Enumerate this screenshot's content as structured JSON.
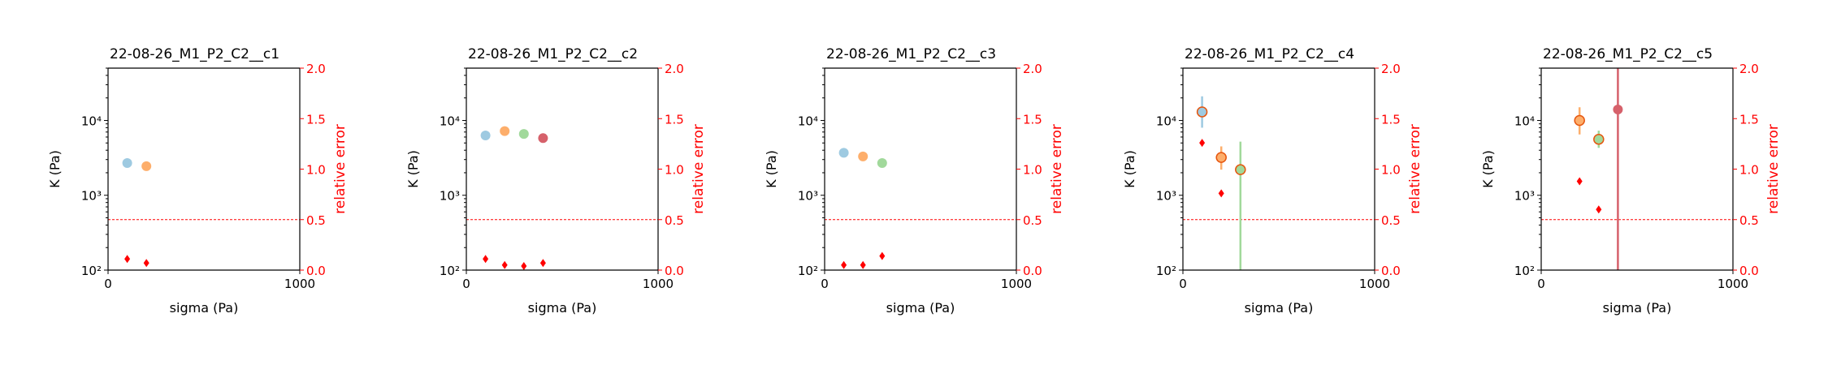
{
  "colors": {
    "axis": "#000000",
    "error_axis": "#ff0000",
    "threshold_line": "#ff0000",
    "error_marker": "#ff0000",
    "series_palette": [
      "#9ecae1",
      "#fdae6b",
      "#a1d99b",
      "#d6616b"
    ],
    "overlay_marker": "#e6550d"
  },
  "chart_data": [
    {
      "type": "scatter",
      "title": "22-08-26_M1_P2_C2__c1",
      "xlabel": "sigma (Pa)",
      "ylabel": "K (Pa)",
      "y2label": "relative error",
      "xlim": [
        0,
        1000
      ],
      "ylim": [
        100,
        50000
      ],
      "yscale": "log",
      "y2lim": [
        0,
        2.0
      ],
      "xticks": [
        "0",
        "1000"
      ],
      "yticks": [
        "10²",
        "10³",
        "10⁴"
      ],
      "y2ticks": [
        "0.0",
        "0.5",
        "1.0",
        "1.5",
        "2.0"
      ],
      "threshold": 0.5,
      "points": [
        {
          "x": 100,
          "y": 2700,
          "color": "#9ecae1"
        },
        {
          "x": 200,
          "y": 2450,
          "color": "#fdae6b"
        }
      ],
      "errors": [
        {
          "x": 100,
          "value": 0.11
        },
        {
          "x": 200,
          "value": 0.07
        }
      ]
    },
    {
      "type": "scatter",
      "title": "22-08-26_M1_P2_C2__c2",
      "xlabel": "sigma (Pa)",
      "ylabel": "K (Pa)",
      "y2label": "relative error",
      "xlim": [
        0,
        1000
      ],
      "ylim": [
        100,
        50000
      ],
      "yscale": "log",
      "y2lim": [
        0,
        2.0
      ],
      "xticks": [
        "0",
        "1000"
      ],
      "yticks": [
        "10²",
        "10³",
        "10⁴"
      ],
      "y2ticks": [
        "0.0",
        "0.5",
        "1.0",
        "1.5",
        "2.0"
      ],
      "threshold": 0.5,
      "points": [
        {
          "x": 100,
          "y": 6300,
          "color": "#9ecae1"
        },
        {
          "x": 200,
          "y": 7200,
          "color": "#fdae6b"
        },
        {
          "x": 300,
          "y": 6600,
          "color": "#a1d99b"
        },
        {
          "x": 400,
          "y": 5800,
          "color": "#d6616b"
        }
      ],
      "errors": [
        {
          "x": 100,
          "value": 0.11
        },
        {
          "x": 200,
          "value": 0.05
        },
        {
          "x": 300,
          "value": 0.04
        },
        {
          "x": 400,
          "value": 0.07
        }
      ]
    },
    {
      "type": "scatter",
      "title": "22-08-26_M1_P2_C2__c3",
      "xlabel": "sigma (Pa)",
      "ylabel": "K (Pa)",
      "y2label": "relative error",
      "xlim": [
        0,
        1000
      ],
      "ylim": [
        100,
        50000
      ],
      "yscale": "log",
      "y2lim": [
        0,
        2.0
      ],
      "xticks": [
        "0",
        "1000"
      ],
      "yticks": [
        "10²",
        "10³",
        "10⁴"
      ],
      "y2ticks": [
        "0.0",
        "0.5",
        "1.0",
        "1.5",
        "2.0"
      ],
      "threshold": 0.5,
      "points": [
        {
          "x": 100,
          "y": 3700,
          "color": "#9ecae1"
        },
        {
          "x": 200,
          "y": 3300,
          "color": "#fdae6b"
        },
        {
          "x": 300,
          "y": 2700,
          "color": "#a1d99b"
        }
      ],
      "errors": [
        {
          "x": 100,
          "value": 0.05
        },
        {
          "x": 200,
          "value": 0.05
        },
        {
          "x": 300,
          "value": 0.14
        }
      ]
    },
    {
      "type": "scatter",
      "title": "22-08-26_M1_P2_C2__c4",
      "xlabel": "sigma (Pa)",
      "ylabel": "K (Pa)",
      "y2label": "relative error",
      "xlim": [
        0,
        1000
      ],
      "ylim": [
        100,
        50000
      ],
      "yscale": "log",
      "y2lim": [
        0,
        2.0
      ],
      "xticks": [
        "0",
        "1000"
      ],
      "yticks": [
        "10²",
        "10³",
        "10⁴"
      ],
      "y2ticks": [
        "0.0",
        "0.5",
        "1.0",
        "1.5",
        "2.0"
      ],
      "threshold": 0.5,
      "points": [
        {
          "x": 100,
          "y": 13000,
          "color": "#9ecae1",
          "err_low": 8000,
          "err_high": 21000,
          "overlay": true
        },
        {
          "x": 200,
          "y": 3200,
          "color": "#fdae6b",
          "err_low": 2200,
          "err_high": 4500,
          "overlay": true
        },
        {
          "x": 300,
          "y": 2200,
          "color": "#a1d99b",
          "err_low": 100,
          "err_high": 5200,
          "overlay": true
        }
      ],
      "errors": [
        {
          "x": 100,
          "value": 1.26
        },
        {
          "x": 200,
          "value": 0.76
        }
      ]
    },
    {
      "type": "scatter",
      "title": "22-08-26_M1_P2_C2__c5",
      "xlabel": "sigma (Pa)",
      "ylabel": "K (Pa)",
      "y2label": "relative error",
      "xlim": [
        0,
        1000
      ],
      "ylim": [
        100,
        50000
      ],
      "yscale": "log",
      "y2lim": [
        0,
        2.0
      ],
      "xticks": [
        "0",
        "1000"
      ],
      "yticks": [
        "10²",
        "10³",
        "10⁴"
      ],
      "y2ticks": [
        "0.0",
        "0.5",
        "1.0",
        "1.5",
        "2.0"
      ],
      "threshold": 0.5,
      "points": [
        {
          "x": 200,
          "y": 10000,
          "color": "#fdae6b",
          "err_low": 6500,
          "err_high": 15000,
          "overlay": true
        },
        {
          "x": 300,
          "y": 5600,
          "color": "#a1d99b",
          "err_low": 4300,
          "err_high": 7300,
          "overlay": true
        },
        {
          "x": 400,
          "y": 14000,
          "color": "#d6616b",
          "err_low": 100,
          "err_high": 50000
        }
      ],
      "errors": [
        {
          "x": 200,
          "value": 0.88
        },
        {
          "x": 300,
          "value": 0.6
        }
      ]
    }
  ]
}
